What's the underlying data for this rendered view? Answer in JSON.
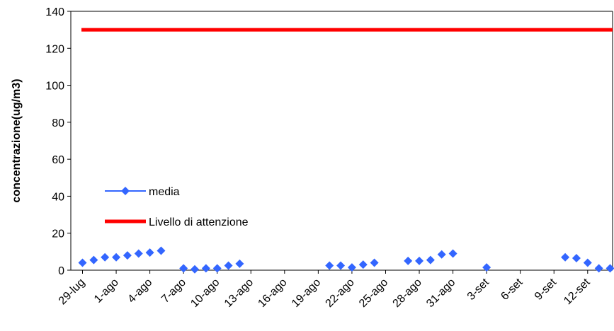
{
  "chart_data": {
    "type": "line",
    "title": "",
    "xlabel": "",
    "ylabel": "concentrazione(ug/m3)",
    "ylim": [
      0,
      140
    ],
    "yticks": [
      0,
      20,
      40,
      60,
      80,
      100,
      120,
      140
    ],
    "grid": false,
    "legend_position": "middle-left",
    "x_start": "29-lug",
    "x_end": "14-set",
    "x_tick_labels": [
      "29-lug",
      "1-ago",
      "4-ago",
      "7-ago",
      "10-ago",
      "13-ago",
      "16-ago",
      "19-ago",
      "22-ago",
      "25-ago",
      "28-ago",
      "31-ago",
      "3-set",
      "6-set",
      "9-set",
      "12-set"
    ],
    "series": [
      {
        "name": "media",
        "color": "#3366FF",
        "marker": "diamond",
        "points": [
          {
            "x": "29-lug",
            "y": 4
          },
          {
            "x": "30-lug",
            "y": 5.5
          },
          {
            "x": "31-lug",
            "y": 7
          },
          {
            "x": "1-ago",
            "y": 7
          },
          {
            "x": "2-ago",
            "y": 8
          },
          {
            "x": "3-ago",
            "y": 9
          },
          {
            "x": "4-ago",
            "y": 9.5
          },
          {
            "x": "5-ago",
            "y": 10.5
          },
          {
            "x": "7-ago",
            "y": 1
          },
          {
            "x": "8-ago",
            "y": 0.5
          },
          {
            "x": "9-ago",
            "y": 1
          },
          {
            "x": "10-ago",
            "y": 1
          },
          {
            "x": "11-ago",
            "y": 2.5
          },
          {
            "x": "12-ago",
            "y": 3.5
          },
          {
            "x": "20-ago",
            "y": 2.5
          },
          {
            "x": "21-ago",
            "y": 2.5
          },
          {
            "x": "22-ago",
            "y": 1.5
          },
          {
            "x": "23-ago",
            "y": 3
          },
          {
            "x": "24-ago",
            "y": 4
          },
          {
            "x": "27-ago",
            "y": 5
          },
          {
            "x": "28-ago",
            "y": 5
          },
          {
            "x": "29-ago",
            "y": 5.5
          },
          {
            "x": "30-ago",
            "y": 8.5
          },
          {
            "x": "31-ago",
            "y": 9
          },
          {
            "x": "3-set",
            "y": 1.5
          },
          {
            "x": "10-set",
            "y": 7
          },
          {
            "x": "11-set",
            "y": 6.5
          },
          {
            "x": "12-set",
            "y": 4
          },
          {
            "x": "13-set",
            "y": 1
          },
          {
            "x": "14-set",
            "y": 1
          }
        ]
      },
      {
        "name": "Livello di attenzione",
        "color": "#FF0000",
        "marker": "none",
        "constant_y": 130
      }
    ]
  }
}
